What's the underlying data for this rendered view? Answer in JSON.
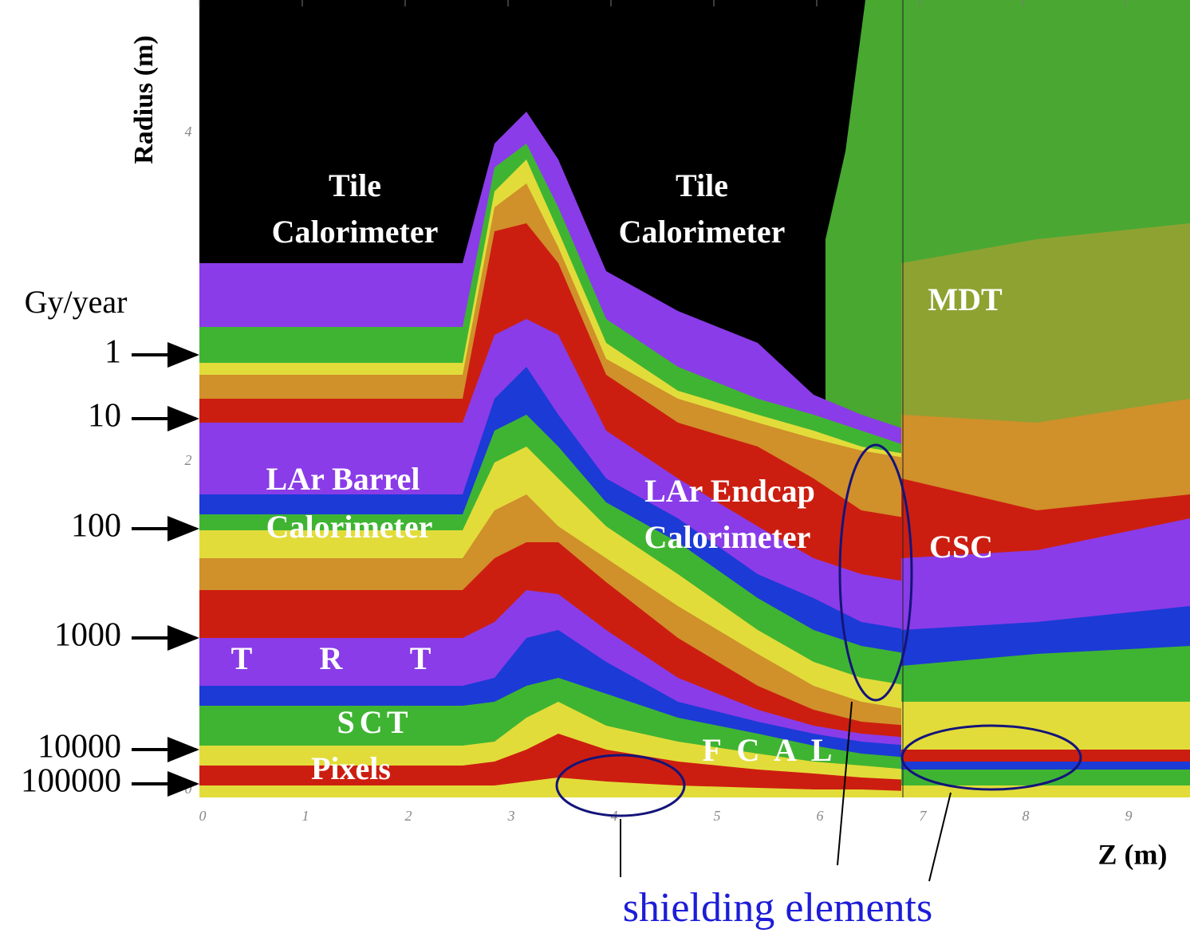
{
  "axes": {
    "x_label": "Z (m)",
    "y_label": "Radius (m)",
    "x_ticks": [
      0,
      1,
      2,
      3,
      4,
      5,
      6,
      7,
      8,
      9
    ],
    "y_ticks": [
      0,
      2,
      4
    ]
  },
  "dose_scale": {
    "title": "Gy/year",
    "levels": [
      "1",
      "10",
      "100",
      "1000",
      "10000",
      "100000"
    ]
  },
  "regions": [
    {
      "lines": [
        "Tile",
        "Calorimeter"
      ]
    },
    {
      "lines": [
        "Tile",
        "Calorimeter"
      ]
    },
    {
      "lines": [
        "MDT"
      ]
    },
    {
      "lines": [
        "LAr Barrel",
        "Calorimeter"
      ]
    },
    {
      "lines": [
        "LAr Endcap",
        "Calorimeter"
      ]
    },
    {
      "lines": [
        "CSC"
      ]
    },
    {
      "lines": [
        "T R T"
      ]
    },
    {
      "lines": [
        "S C T"
      ]
    },
    {
      "lines": [
        "Pixels"
      ]
    },
    {
      "lines": [
        "F C A L"
      ]
    }
  ],
  "annotation": "shielding elements"
}
